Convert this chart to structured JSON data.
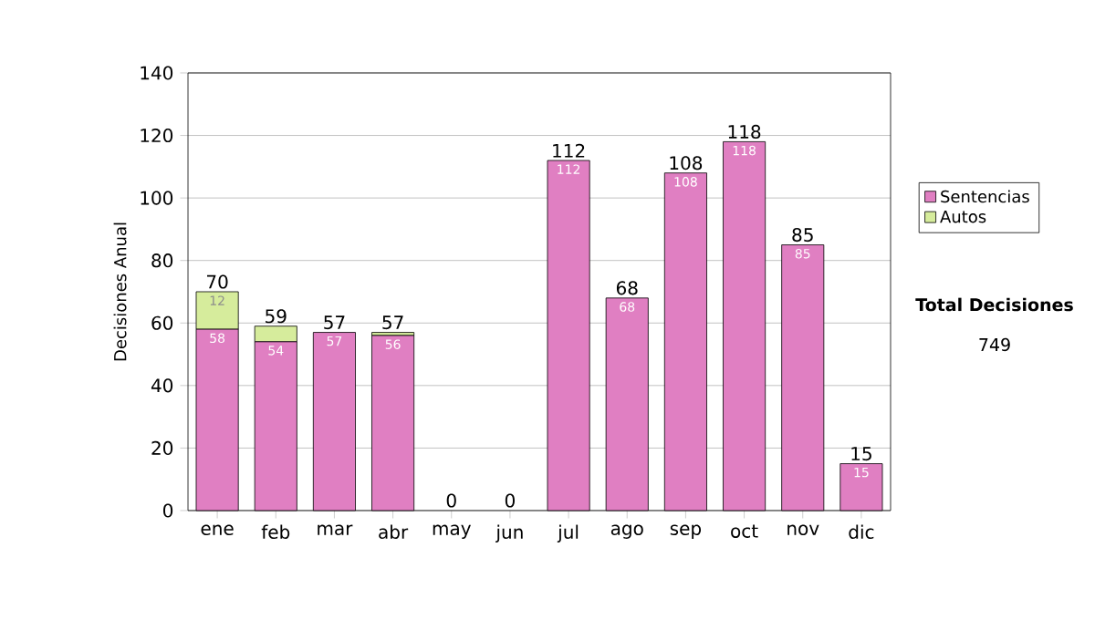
{
  "chart_data": {
    "type": "bar",
    "stacked": true,
    "ylabel": "Decisiones Anual",
    "categories": [
      "ene",
      "feb",
      "mar",
      "abr",
      "may",
      "jun",
      "jul",
      "ago",
      "sep",
      "oct",
      "nov",
      "dic"
    ],
    "series": [
      {
        "name": "Sentencias",
        "color": "#e07fc2",
        "values": [
          58,
          54,
          57,
          56,
          0,
          0,
          112,
          68,
          108,
          118,
          85,
          15
        ],
        "value_labels": [
          "58",
          "54",
          "57",
          "56",
          null,
          null,
          "112",
          "68",
          "108",
          "118",
          "85",
          "15"
        ]
      },
      {
        "name": "Autos",
        "color": "#d6ec9c",
        "values": [
          12,
          5,
          0,
          1,
          0,
          0,
          0,
          0,
          0,
          0,
          0,
          0
        ],
        "value_labels": [
          "12",
          null,
          null,
          null,
          null,
          null,
          null,
          null,
          null,
          null,
          null,
          null
        ]
      }
    ],
    "totals": [
      "70",
      "59",
      "57",
      "57",
      "0",
      "0",
      "112",
      "68",
      "108",
      "118",
      "85",
      "15"
    ],
    "ylim": [
      0,
      140
    ],
    "yticks": [
      0,
      20,
      40,
      60,
      80,
      100,
      120,
      140
    ],
    "grid": "y",
    "legend": "right",
    "annotations": [
      "**Total Decisiones**",
      "749"
    ]
  }
}
